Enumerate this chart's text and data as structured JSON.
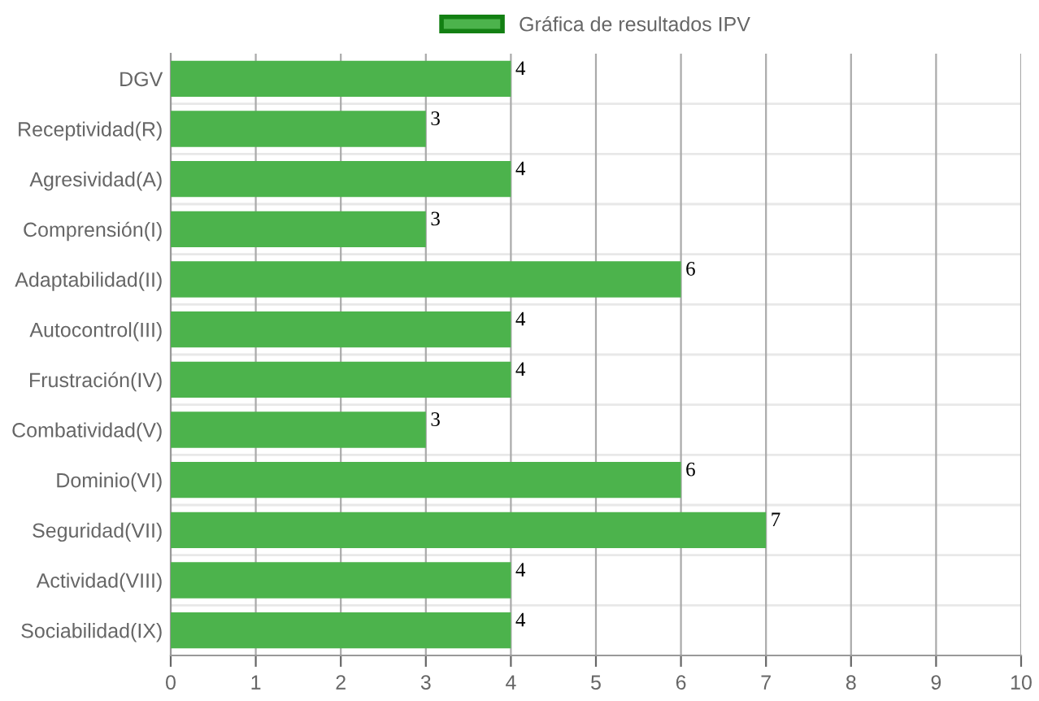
{
  "chart_data": {
    "type": "bar",
    "orientation": "horizontal",
    "categories": [
      "DGV",
      "Receptividad(R)",
      "Agresividad(A)",
      "Comprensión(I)",
      "Adaptabilidad(II)",
      "Autocontrol(III)",
      "Frustración(IV)",
      "Combatividad(V)",
      "Dominio(VI)",
      "Seguridad(VII)",
      "Actividad(VIII)",
      "Sociabilidad(IX)"
    ],
    "series": [
      {
        "name": "Gráfica de resultados IPV",
        "color": "#4cb34c",
        "values": [
          4,
          3,
          4,
          3,
          6,
          4,
          4,
          3,
          6,
          7,
          4,
          4
        ]
      }
    ],
    "xlim": [
      0,
      10
    ],
    "xticks": [
      0,
      1,
      2,
      3,
      4,
      5,
      6,
      7,
      8,
      9,
      10
    ],
    "grid": true,
    "legend": "top",
    "data_labels": true
  }
}
